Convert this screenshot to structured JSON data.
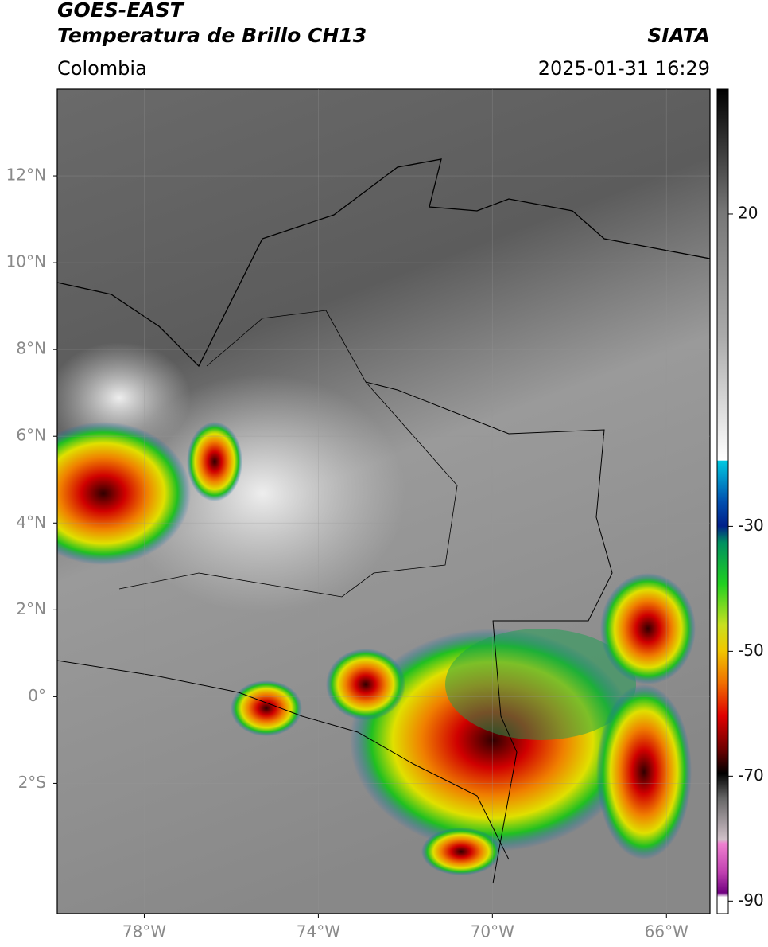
{
  "header": {
    "title": "GOES-EAST",
    "subtitle": "Temperatura de Brillo CH13",
    "source": "SIATA",
    "region": "Colombia",
    "datetime": "2025-01-31 16:29"
  },
  "map": {
    "xlim": [
      -80,
      -65
    ],
    "ylim": [
      -5,
      14
    ],
    "xticks": [
      {
        "value": -78,
        "label": "78°W"
      },
      {
        "value": -74,
        "label": "74°W"
      },
      {
        "value": -70,
        "label": "70°W"
      },
      {
        "value": -66,
        "label": "66°W"
      }
    ],
    "yticks": [
      {
        "value": 12,
        "label": "12°N"
      },
      {
        "value": 10,
        "label": "10°N"
      },
      {
        "value": 8,
        "label": "8°N"
      },
      {
        "value": 6,
        "label": "6°N"
      },
      {
        "value": 4,
        "label": "4°N"
      },
      {
        "value": 2,
        "label": "2°N"
      },
      {
        "value": 0,
        "label": "0°"
      },
      {
        "value": -2,
        "label": "2°S"
      }
    ],
    "grid": true
  },
  "colorbar": {
    "lim": [
      -92,
      40
    ],
    "ticks": [
      20,
      -30,
      -50,
      -70,
      -90
    ]
  }
}
